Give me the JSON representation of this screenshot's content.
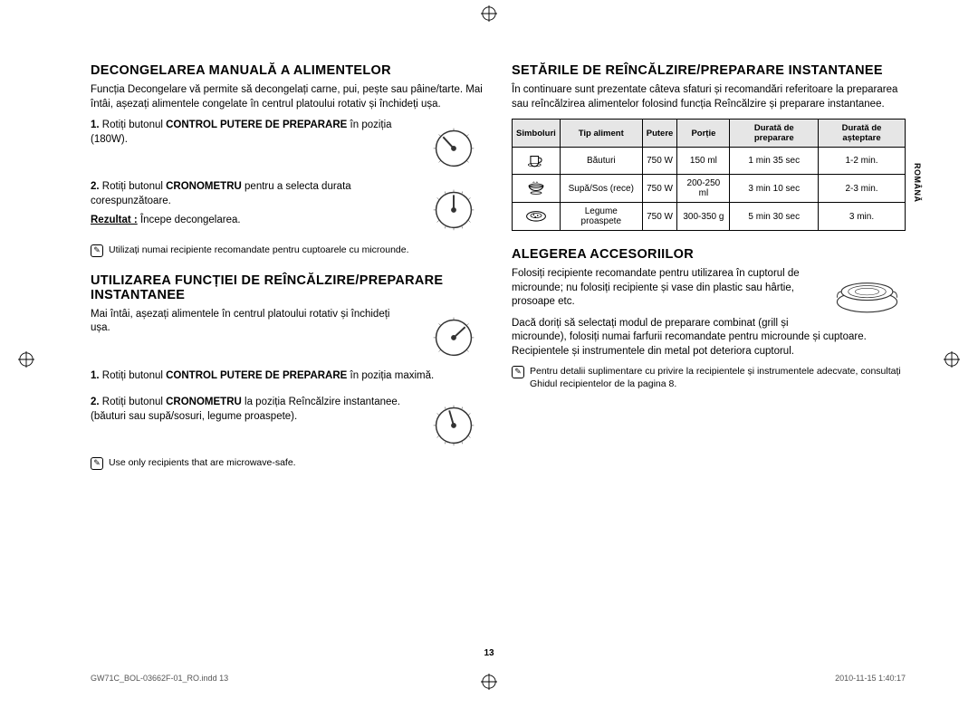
{
  "left": {
    "s1": {
      "title": "DECONGELAREA MANUALĂ A ALIMENTELOR",
      "intro": "Funcția Decongelare vă permite să decongelați carne, pui, pește sau pâine/tarte. Mai întâi, așezați alimentele congelate în centrul platoului rotativ și închideți ușa.",
      "step1_pre": "1. ",
      "step1_a": "Rotiți butonul ",
      "step1_b": "CONTROL PUTERE DE PREPARARE",
      "step1_c": " în poziția (180W).",
      "step2_pre": "2. ",
      "step2_a": "Rotiți butonul ",
      "step2_b": "CRONOMETRU",
      "step2_c": " pentru a selecta durata corespunzătoare.",
      "result_label": "Rezultat :",
      "result_text": "   Începe decongelarea.",
      "note": "Utilizați numai recipiente recomandate pentru cuptoarele cu microunde."
    },
    "s2": {
      "title": "UTILIZAREA FUNCȚIEI DE REÎNCĂLZIRE/PREPARARE INSTANTANEE",
      "intro": "Mai întâi, așezați alimentele în centrul platoului rotativ și închideți ușa.",
      "step1_pre": "1. ",
      "step1_a": "Rotiți butonul ",
      "step1_b": "CONTROL PUTERE DE PREPARARE",
      "step1_c": " în poziția maximă.",
      "step2_pre": "2. ",
      "step2_a": "Rotiți butonul ",
      "step2_b": "CRONOMETRU",
      "step2_c": " la poziția Reîncălzire instantanee.",
      "step2_d": "(băuturi sau supă/sosuri, legume proaspete).",
      "note": "Use only recipients that are microwave-safe."
    }
  },
  "right": {
    "s1": {
      "title": "SETĂRILE DE REÎNCĂLZIRE/PREPARARE INSTANTANEE",
      "intro": "În continuare sunt prezentate câteva sfaturi și recomandări referitoare la prepararea sau reîncălzirea alimentelor folosind funcția Reîncălzire și preparare instantanee.",
      "table": {
        "headers": [
          "Simboluri",
          "Tip aliment",
          "Putere",
          "Porție",
          "Durată de preparare",
          "Durată de așteptare"
        ],
        "rows": [
          {
            "sym": "cup",
            "food": "Băuturi",
            "power": "750 W",
            "portion": "150 ml",
            "time": "1 min 35 sec",
            "wait": "1-2 min."
          },
          {
            "sym": "bowl",
            "food": "Supă/Sos (rece)",
            "power": "750 W",
            "portion": "200-250 ml",
            "time": "3 min 10 sec",
            "wait": "2-3 min."
          },
          {
            "sym": "plate",
            "food": "Legume proaspete",
            "power": "750 W",
            "portion": "300-350 g",
            "time": "5 min 30 sec",
            "wait": "3 min."
          }
        ]
      }
    },
    "s2": {
      "title": "ALEGEREA ACCESORIILOR",
      "p1": "Folosiți recipiente recomandate pentru utilizarea în cuptorul de microunde; nu folosiți recipiente și vase din plastic sau hârtie, prosoape etc.",
      "p2": "Dacă doriți să selectați modul de preparare combinat (grill și microunde), folosiți numai farfurii recomandate pentru microunde și cuptoare. Recipientele și instrumentele din metal pot deteriora cuptorul.",
      "note": "Pentru detalii suplimentare cu privire la recipientele și instrumentele adecvate, consultați Ghidul recipientelor de la pagina 8."
    }
  },
  "side_label": "ROMÂNĂ",
  "page_number": "13",
  "footer_left": "GW71C_BOL-03662F-01_RO.indd   13",
  "footer_right": "2010-11-15      1:40:17",
  "colors": {
    "text": "#000000",
    "table_header_bg": "#e6e6e6",
    "footer": "#555555"
  }
}
